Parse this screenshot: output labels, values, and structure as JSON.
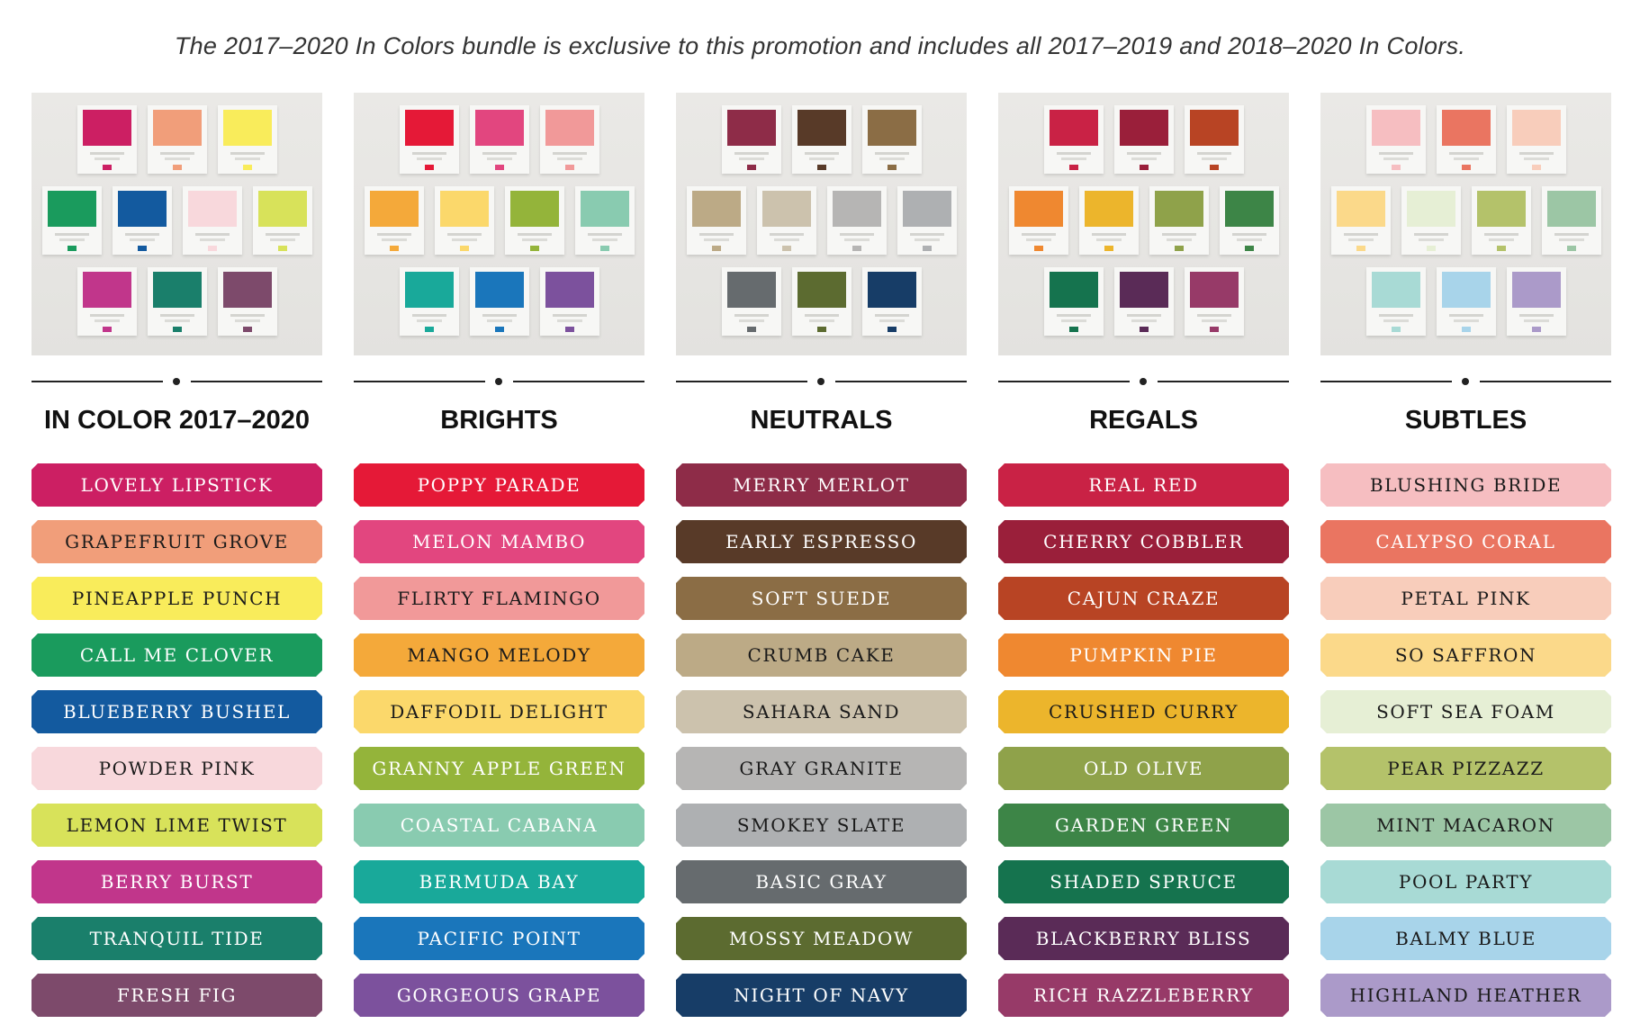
{
  "intro": "The 2017–2020 In Colors bundle is exclusive to this promotion and includes all 2017–2019 and 2018–2020 In Colors.",
  "columns": [
    {
      "heading": "IN COLOR 2017–2020",
      "labels": [
        {
          "name": "LOVELY LIPSTICK",
          "bg": "#cc1f63",
          "fg": "#ffffff"
        },
        {
          "name": "GRAPEFRUIT GROVE",
          "bg": "#f19e7a",
          "fg": "#1a1a1a"
        },
        {
          "name": "PINEAPPLE PUNCH",
          "bg": "#f9ec5b",
          "fg": "#1a1a1a"
        },
        {
          "name": "CALL ME CLOVER",
          "bg": "#1a9b5d",
          "fg": "#ffffff"
        },
        {
          "name": "BLUEBERRY BUSHEL",
          "bg": "#135a9f",
          "fg": "#ffffff"
        },
        {
          "name": "POWDER PINK",
          "bg": "#f8d8dc",
          "fg": "#1a1a1a"
        },
        {
          "name": "LEMON LIME TWIST",
          "bg": "#d8e25a",
          "fg": "#1a1a1a"
        },
        {
          "name": "BERRY BURST",
          "bg": "#c1368b",
          "fg": "#ffffff"
        },
        {
          "name": "TRANQUIL TIDE",
          "bg": "#1a7f6b",
          "fg": "#ffffff"
        },
        {
          "name": "FRESH FIG",
          "bg": "#7d4a6b",
          "fg": "#ffffff"
        }
      ]
    },
    {
      "heading": "BRIGHTS",
      "labels": [
        {
          "name": "POPPY PARADE",
          "bg": "#e51937",
          "fg": "#ffffff"
        },
        {
          "name": "MELON MAMBO",
          "bg": "#e2467f",
          "fg": "#ffffff"
        },
        {
          "name": "FLIRTY FLAMINGO",
          "bg": "#f19999",
          "fg": "#1a1a1a"
        },
        {
          "name": "MANGO MELODY",
          "bg": "#f4a93a",
          "fg": "#1a1a1a"
        },
        {
          "name": "DAFFODIL DELIGHT",
          "bg": "#fbd86b",
          "fg": "#1a1a1a"
        },
        {
          "name": "GRANNY APPLE GREEN",
          "bg": "#94b43a",
          "fg": "#ffffff"
        },
        {
          "name": "COASTAL CABANA",
          "bg": "#89cbb0",
          "fg": "#ffffff"
        },
        {
          "name": "BERMUDA BAY",
          "bg": "#19a99a",
          "fg": "#ffffff"
        },
        {
          "name": "PACIFIC POINT",
          "bg": "#1a76bb",
          "fg": "#ffffff"
        },
        {
          "name": "GORGEOUS GRAPE",
          "bg": "#7c519d",
          "fg": "#ffffff"
        }
      ]
    },
    {
      "heading": "NEUTRALS",
      "labels": [
        {
          "name": "MERRY MERLOT",
          "bg": "#8e2c48",
          "fg": "#ffffff"
        },
        {
          "name": "EARLY ESPRESSO",
          "bg": "#583a28",
          "fg": "#ffffff"
        },
        {
          "name": "SOFT SUEDE",
          "bg": "#8b6d45",
          "fg": "#ffffff"
        },
        {
          "name": "CRUMB CAKE",
          "bg": "#bcaa86",
          "fg": "#1a1a1a"
        },
        {
          "name": "SAHARA SAND",
          "bg": "#ccc2ad",
          "fg": "#1a1a1a"
        },
        {
          "name": "GRAY GRANITE",
          "bg": "#b6b5b4",
          "fg": "#1a1a1a"
        },
        {
          "name": "SMOKEY SLATE",
          "bg": "#aeb0b2",
          "fg": "#1a1a1a"
        },
        {
          "name": "BASIC GRAY",
          "bg": "#666b6e",
          "fg": "#ffffff"
        },
        {
          "name": "MOSSY MEADOW",
          "bg": "#5c6b30",
          "fg": "#ffffff"
        },
        {
          "name": "NIGHT OF NAVY",
          "bg": "#173d67",
          "fg": "#ffffff"
        }
      ]
    },
    {
      "heading": "REGALS",
      "labels": [
        {
          "name": "REAL RED",
          "bg": "#c92245",
          "fg": "#ffffff"
        },
        {
          "name": "CHERRY COBBLER",
          "bg": "#9a1f3a",
          "fg": "#ffffff"
        },
        {
          "name": "CAJUN CRAZE",
          "bg": "#b84424",
          "fg": "#ffffff"
        },
        {
          "name": "PUMPKIN PIE",
          "bg": "#ef8830",
          "fg": "#ffffff"
        },
        {
          "name": "CRUSHED CURRY",
          "bg": "#ecb52c",
          "fg": "#1a1a1a"
        },
        {
          "name": "OLD OLIVE",
          "bg": "#8fa24a",
          "fg": "#ffffff"
        },
        {
          "name": "GARDEN GREEN",
          "bg": "#3d8547",
          "fg": "#ffffff"
        },
        {
          "name": "SHADED SPRUCE",
          "bg": "#15734e",
          "fg": "#ffffff"
        },
        {
          "name": "BLACKBERRY BLISS",
          "bg": "#5a2b57",
          "fg": "#ffffff"
        },
        {
          "name": "RICH RAZZLEBERRY",
          "bg": "#973a68",
          "fg": "#ffffff"
        }
      ]
    },
    {
      "heading": "SUBTLES",
      "labels": [
        {
          "name": "BLUSHING BRIDE",
          "bg": "#f6bec1",
          "fg": "#1a1a1a"
        },
        {
          "name": "CALYPSO CORAL",
          "bg": "#ea7561",
          "fg": "#ffffff"
        },
        {
          "name": "PETAL PINK",
          "bg": "#f8cdbb",
          "fg": "#1a1a1a"
        },
        {
          "name": "SO SAFFRON",
          "bg": "#fbd98a",
          "fg": "#1a1a1a"
        },
        {
          "name": "SOFT SEA FOAM",
          "bg": "#e6efd5",
          "fg": "#1a1a1a"
        },
        {
          "name": "PEAR PIZZAZZ",
          "bg": "#b4c26a",
          "fg": "#1a1a1a"
        },
        {
          "name": "MINT MACARON",
          "bg": "#9cc6a5",
          "fg": "#1a1a1a"
        },
        {
          "name": "POOL PARTY",
          "bg": "#a8dad5",
          "fg": "#1a1a1a"
        },
        {
          "name": "BALMY BLUE",
          "bg": "#a8d4ea",
          "fg": "#1a1a1a"
        },
        {
          "name": "HIGHLAND HEATHER",
          "bg": "#ab9ac9",
          "fg": "#1a1a1a"
        }
      ]
    }
  ]
}
